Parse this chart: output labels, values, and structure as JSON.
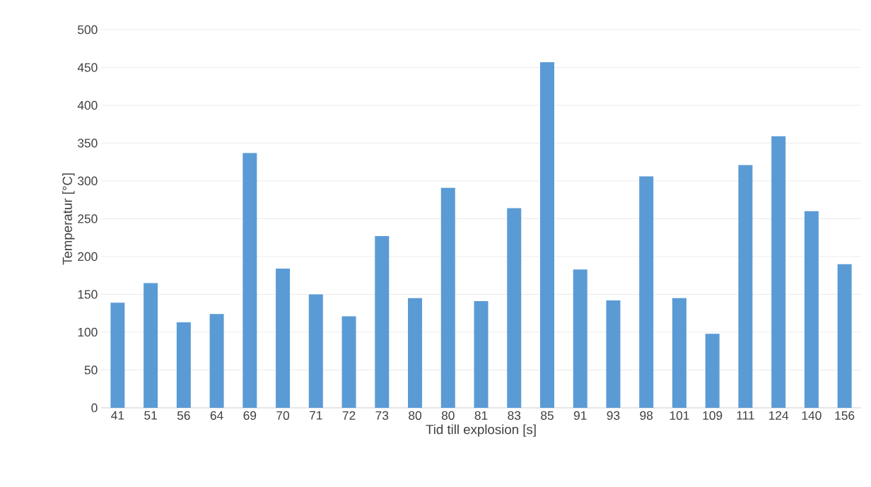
{
  "chart_data": {
    "type": "bar",
    "xlabel": "Tid till explosion [s]",
    "ylabel": "Temperatur [°C]",
    "categories": [
      "41",
      "51",
      "56",
      "64",
      "69",
      "70",
      "71",
      "72",
      "73",
      "80",
      "80",
      "81",
      "83",
      "85",
      "91",
      "93",
      "98",
      "101",
      "109",
      "111",
      "124",
      "140",
      "156"
    ],
    "values": [
      139,
      165,
      113,
      124,
      337,
      184,
      150,
      121,
      227,
      145,
      291,
      141,
      264,
      457,
      183,
      142,
      306,
      145,
      98,
      321,
      359,
      260,
      190
    ],
    "color": "#5b9bd5",
    "ylim": [
      0,
      500
    ],
    "yticks": [
      0,
      50,
      100,
      150,
      200,
      250,
      300,
      350,
      400,
      450,
      500
    ],
    "grid": "y"
  }
}
